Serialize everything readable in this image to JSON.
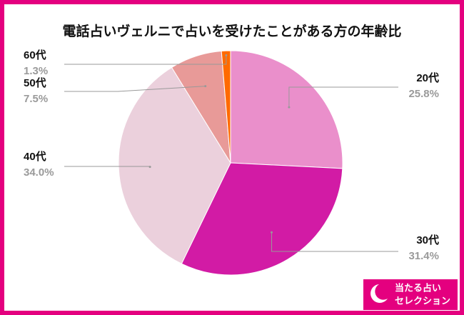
{
  "chart_data": {
    "type": "pie",
    "title": "電話占いヴェルニで占いを受けたことがある方の年齢比",
    "categories": [
      "20代",
      "30代",
      "40代",
      "50代",
      "60代"
    ],
    "values": [
      25.8,
      31.4,
      34.0,
      7.5,
      1.3
    ],
    "value_labels": [
      "25.8%",
      "31.4%",
      "34.0%",
      "7.5%",
      "1.3%"
    ],
    "colors": [
      "#ea8fcb",
      "#d21ba5",
      "#ebd0dc",
      "#e89a98",
      "#ff6a00"
    ]
  },
  "logo": {
    "line1": "当たる占い",
    "line2": "セレクション"
  }
}
